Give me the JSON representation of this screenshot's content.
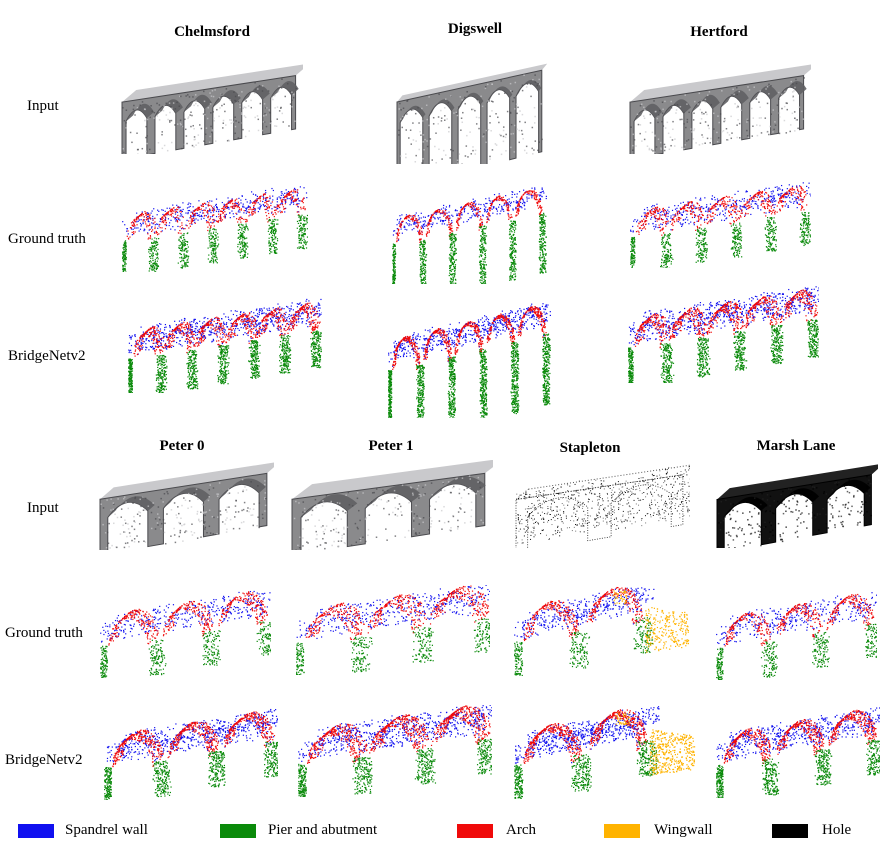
{
  "top_columns": [
    "Chelmsford",
    "Digswell",
    "Hertford"
  ],
  "bottom_columns": [
    "Peter 0",
    "Peter 1",
    "Stapleton",
    "Marsh Lane"
  ],
  "row_labels": {
    "input": "Input",
    "ground_truth": "Ground truth",
    "prediction": "BridgeNetv2"
  },
  "legend": [
    {
      "label": "Spandrel wall",
      "color": "#1010f0"
    },
    {
      "label": "Pier and abutment",
      "color": "#0a8a0a"
    },
    {
      "label": "Arch",
      "color": "#f00a0a"
    },
    {
      "label": "Wingwall",
      "color": "#ffb300"
    },
    {
      "label": "Hole",
      "color": "#000000"
    }
  ]
}
